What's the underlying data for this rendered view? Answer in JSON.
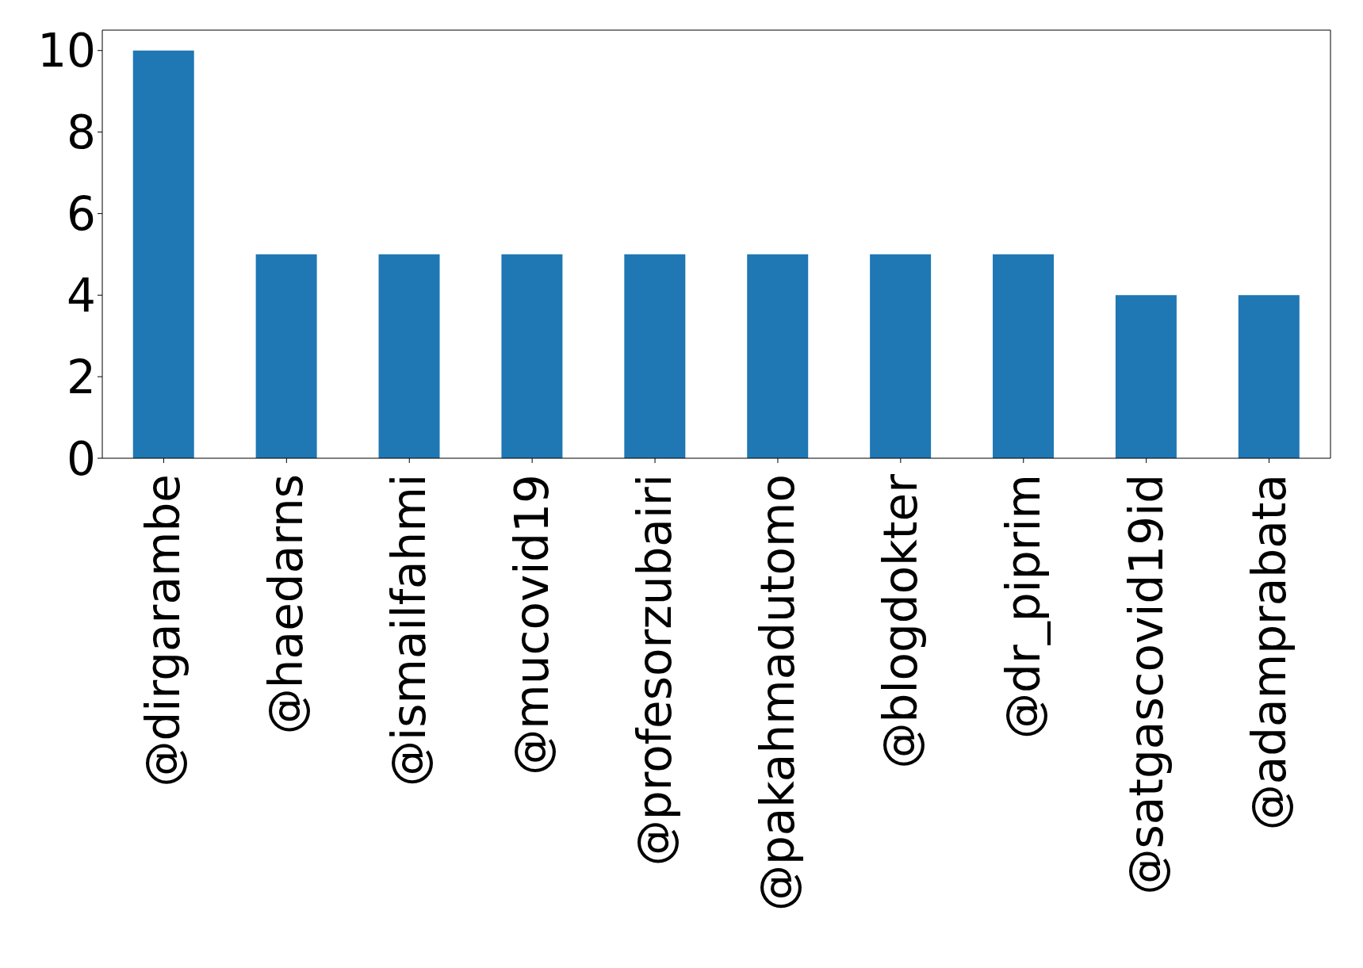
{
  "chart_data": {
    "type": "bar",
    "categories": [
      "@dirgarambe",
      "@haedarns",
      "@ismailfahmi",
      "@mucovid19",
      "@profesorzubairi",
      "@pakahmadutomo",
      "@blogdokter",
      "@dr_piprim",
      "@satgascovid19id",
      "@adamprabata"
    ],
    "values": [
      10,
      5,
      5,
      5,
      5,
      5,
      5,
      5,
      4,
      4
    ],
    "color": "#1f77b4",
    "ylim": [
      0,
      10.5
    ],
    "yticks": [
      0,
      2,
      4,
      6,
      8,
      10
    ],
    "grid": false
  }
}
